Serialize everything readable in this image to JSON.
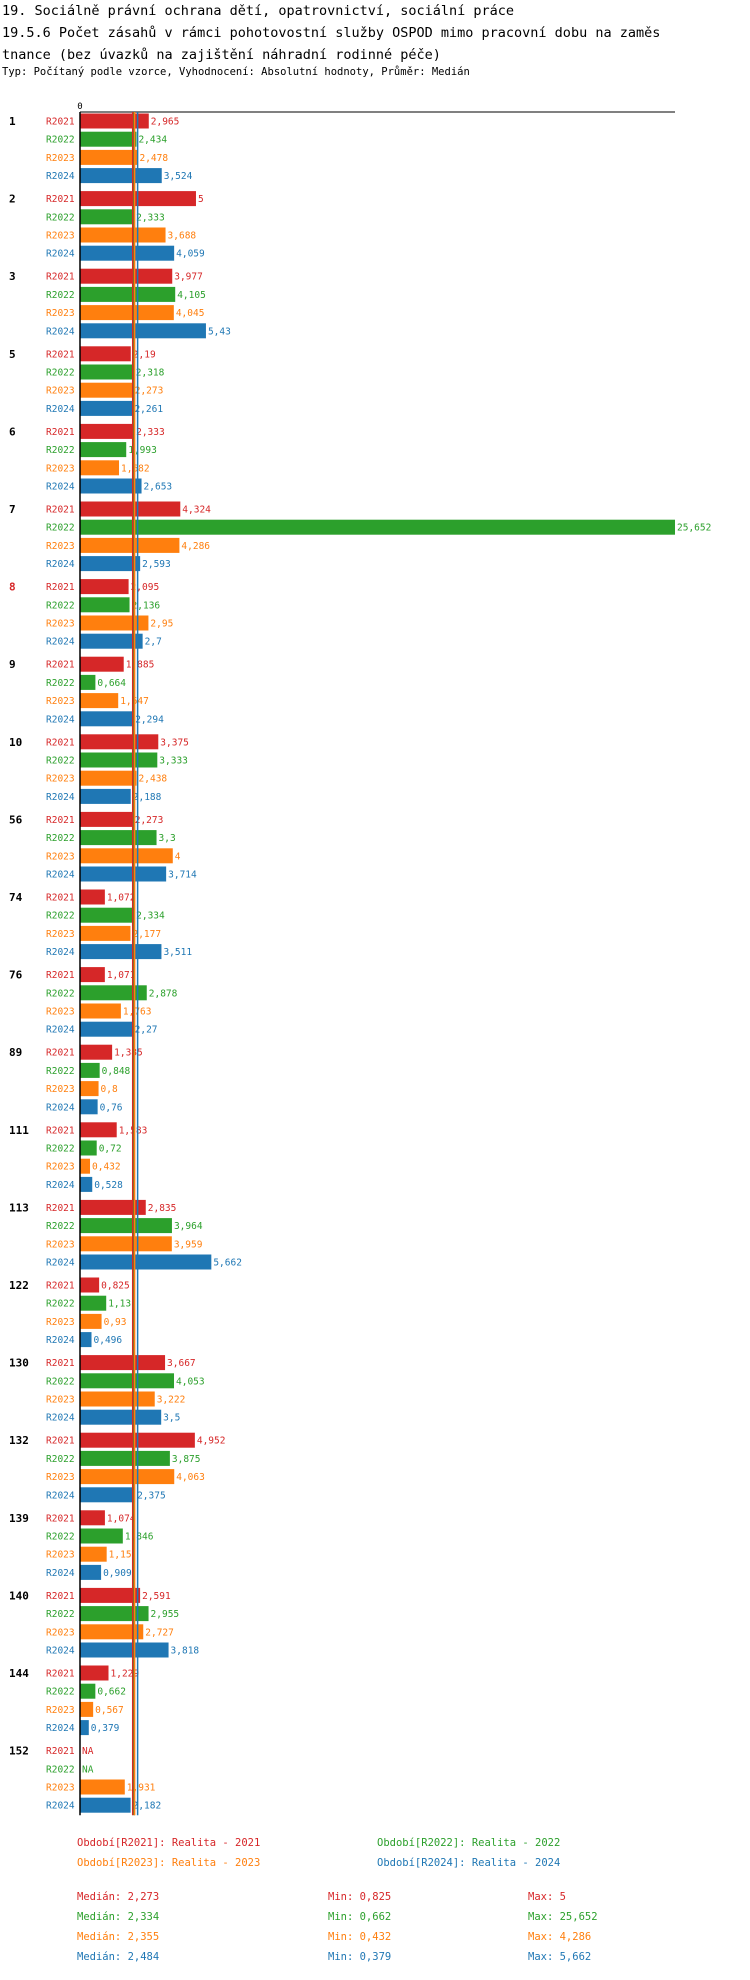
{
  "title_lines": [
    "19. Sociálně právní ochrana dětí, opatrovnictví, sociální práce",
    "19.5.6 Počet zásahů v rámci pohotovostní služby OSPOD mimo pracovní dobu na zaměs",
    "tnance (bez úvazků na zajištění náhradní rodinné péče)"
  ],
  "subtitle": "Typ: Počítaný podle vzorce, Vyhodnocení: Absolutní hodnoty, Průměr: Medián",
  "colors": {
    "R2021": "#d62728",
    "R2022": "#2ca02c",
    "R2023": "#ff7f0e",
    "R2024": "#1f77b4",
    "highlight": "#d62728"
  },
  "chart_data": {
    "type": "bar",
    "orientation": "horizontal",
    "axis_zero_label": "0",
    "x_max": 25.652,
    "series_names": [
      "R2021",
      "R2022",
      "R2023",
      "R2024"
    ],
    "median_lines": [
      2.273,
      2.334,
      2.355,
      2.484
    ],
    "highlight_group": "8",
    "groups": [
      {
        "label": "1",
        "values": [
          2.965,
          2.434,
          2.478,
          3.524
        ],
        "labels": [
          "2,965",
          "2,434",
          "2,478",
          "3,524"
        ]
      },
      {
        "label": "2",
        "values": [
          5,
          2.333,
          3.688,
          4.059
        ],
        "labels": [
          "5",
          "2,333",
          "3,688",
          "4,059"
        ]
      },
      {
        "label": "3",
        "values": [
          3.977,
          4.105,
          4.045,
          5.43
        ],
        "labels": [
          "3,977",
          "4,105",
          "4,045",
          "5,43"
        ]
      },
      {
        "label": "5",
        "values": [
          2.19,
          2.318,
          2.273,
          2.261
        ],
        "labels": [
          "2,19",
          "2,318",
          "2,273",
          "2,261"
        ]
      },
      {
        "label": "6",
        "values": [
          2.333,
          1.993,
          1.682,
          2.653
        ],
        "labels": [
          "2,333",
          "1,993",
          "1,682",
          "2,653"
        ]
      },
      {
        "label": "7",
        "values": [
          4.324,
          25.652,
          4.286,
          2.593
        ],
        "labels": [
          "4,324",
          "25,652",
          "4,286",
          "2,593"
        ]
      },
      {
        "label": "8",
        "values": [
          2.095,
          2.136,
          2.95,
          2.7
        ],
        "labels": [
          "2,095",
          "2,136",
          "2,95",
          "2,7"
        ]
      },
      {
        "label": "9",
        "values": [
          1.885,
          0.664,
          1.647,
          2.294
        ],
        "labels": [
          "1,885",
          "0,664",
          "1,647",
          "2,294"
        ]
      },
      {
        "label": "10",
        "values": [
          3.375,
          3.333,
          2.438,
          2.188
        ],
        "labels": [
          "3,375",
          "3,333",
          "2,438",
          "2,188"
        ]
      },
      {
        "label": "56",
        "values": [
          2.273,
          3.3,
          4,
          3.714
        ],
        "labels": [
          "2,273",
          "3,3",
          "4",
          "3,714"
        ]
      },
      {
        "label": "74",
        "values": [
          1.072,
          2.334,
          2.177,
          3.511
        ],
        "labels": [
          "1,072",
          "2,334",
          "2,177",
          "3,511"
        ]
      },
      {
        "label": "76",
        "values": [
          1.071,
          2.878,
          1.763,
          2.27
        ],
        "labels": [
          "1,071",
          "2,878",
          "1,763",
          "2,27"
        ]
      },
      {
        "label": "89",
        "values": [
          1.385,
          0.848,
          0.8,
          0.76
        ],
        "labels": [
          "1,385",
          "0,848",
          "0,8",
          "0,76"
        ]
      },
      {
        "label": "111",
        "values": [
          1.583,
          0.72,
          0.432,
          0.528
        ],
        "labels": [
          "1,583",
          "0,72",
          "0,432",
          "0,528"
        ]
      },
      {
        "label": "113",
        "values": [
          2.835,
          3.964,
          3.959,
          5.662
        ],
        "labels": [
          "2,835",
          "3,964",
          "3,959",
          "5,662"
        ]
      },
      {
        "label": "122",
        "values": [
          0.825,
          1.13,
          0.93,
          0.496
        ],
        "labels": [
          "0,825",
          "1,13",
          "0,93",
          "0,496"
        ]
      },
      {
        "label": "130",
        "values": [
          3.667,
          4.053,
          3.222,
          3.5
        ],
        "labels": [
          "3,667",
          "4,053",
          "3,222",
          "3,5"
        ]
      },
      {
        "label": "132",
        "values": [
          4.952,
          3.875,
          4.063,
          2.375
        ],
        "labels": [
          "4,952",
          "3,875",
          "4,063",
          "2,375"
        ]
      },
      {
        "label": "139",
        "values": [
          1.074,
          1.846,
          1.15,
          0.909
        ],
        "labels": [
          "1,074",
          "1,846",
          "1,15",
          "0,909"
        ]
      },
      {
        "label": "140",
        "values": [
          2.591,
          2.955,
          2.727,
          3.818
        ],
        "labels": [
          "2,591",
          "2,955",
          "2,727",
          "3,818"
        ]
      },
      {
        "label": "144",
        "values": [
          1.229,
          0.662,
          0.567,
          0.379
        ],
        "labels": [
          "1,229",
          "0,662",
          "0,567",
          "0,379"
        ]
      },
      {
        "label": "152",
        "values": [
          null,
          null,
          1.931,
          2.182
        ],
        "labels": [
          "NA",
          "NA",
          "1,931",
          "2,182"
        ]
      }
    ]
  },
  "legend": [
    {
      "text": "Období[R2021]: Realita - 2021",
      "series": "R2021"
    },
    {
      "text": "Období[R2022]: Realita - 2022",
      "series": "R2022"
    },
    {
      "text": "Období[R2023]: Realita - 2023",
      "series": "R2023"
    },
    {
      "text": "Období[R2024]: Realita - 2024",
      "series": "R2024"
    }
  ],
  "stats": [
    {
      "series": "R2021",
      "median": "Medián: 2,273",
      "min": "Min: 0,825",
      "max": "Max: 5"
    },
    {
      "series": "R2022",
      "median": "Medián: 2,334",
      "min": "Min: 0,662",
      "max": "Max: 25,652"
    },
    {
      "series": "R2023",
      "median": "Medián: 2,355",
      "min": "Min: 0,432",
      "max": "Max: 4,286"
    },
    {
      "series": "R2024",
      "median": "Medián: 2,484",
      "min": "Min: 0,379",
      "max": "Max: 5,662"
    }
  ]
}
